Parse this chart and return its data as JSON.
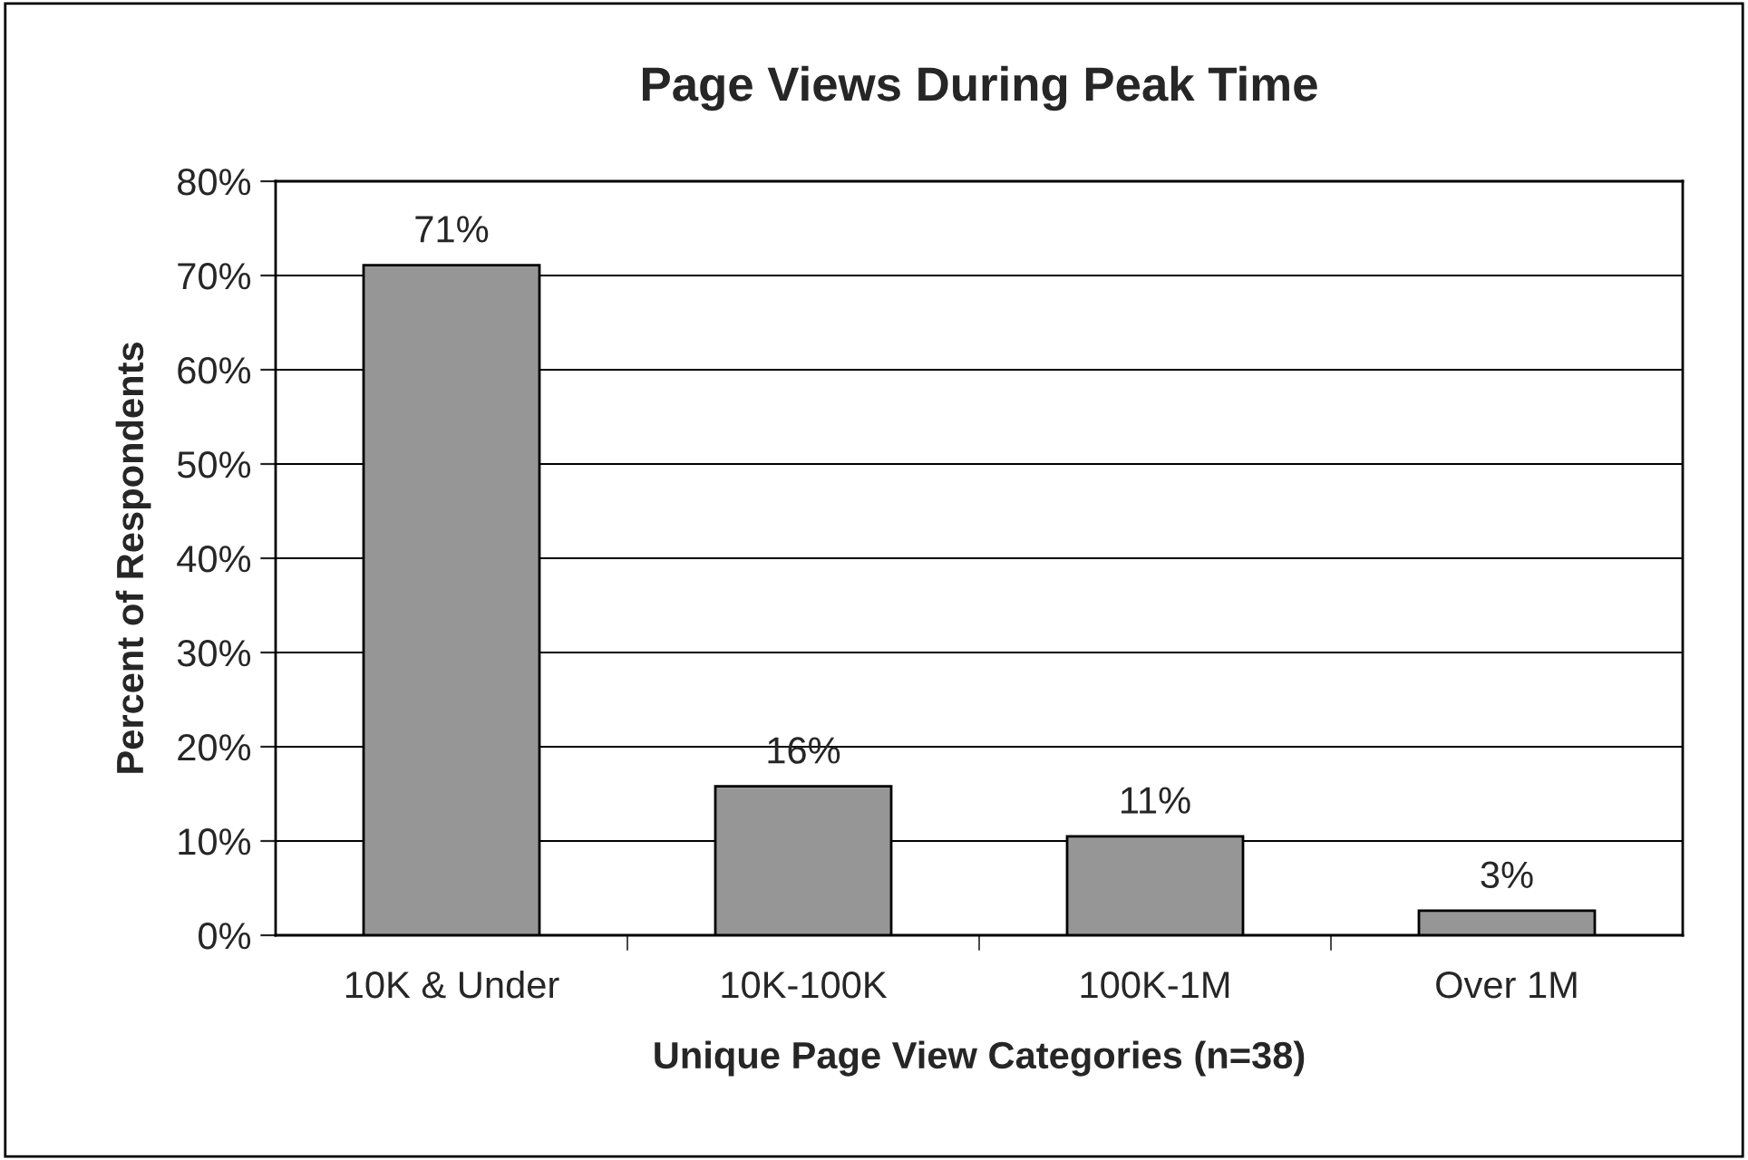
{
  "chart_data": {
    "type": "bar",
    "title": "Page Views During Peak Time",
    "xlabel": "Unique Page View Categories (n=38)",
    "ylabel": "Percent of Respondents",
    "categories": [
      "10K & Under",
      "10K-100K",
      "100K-1M",
      "Over 1M"
    ],
    "values": [
      71.1,
      15.8,
      10.5,
      2.6
    ],
    "value_labels": [
      "71%",
      "16%",
      "11%",
      "3%"
    ],
    "color": "#969696",
    "ylim": [
      0,
      80
    ],
    "yticks": [
      {
        "value": 0,
        "label": "0%"
      },
      {
        "value": 10,
        "label": "10%"
      },
      {
        "value": 20,
        "label": "20%"
      },
      {
        "value": 30,
        "label": "30%"
      },
      {
        "value": 40,
        "label": "40%"
      },
      {
        "value": 50,
        "label": "50%"
      },
      {
        "value": 60,
        "label": "60%"
      },
      {
        "value": 70,
        "label": "70%"
      },
      {
        "value": 80,
        "label": "80%"
      }
    ],
    "grid": "y",
    "legend": false
  }
}
